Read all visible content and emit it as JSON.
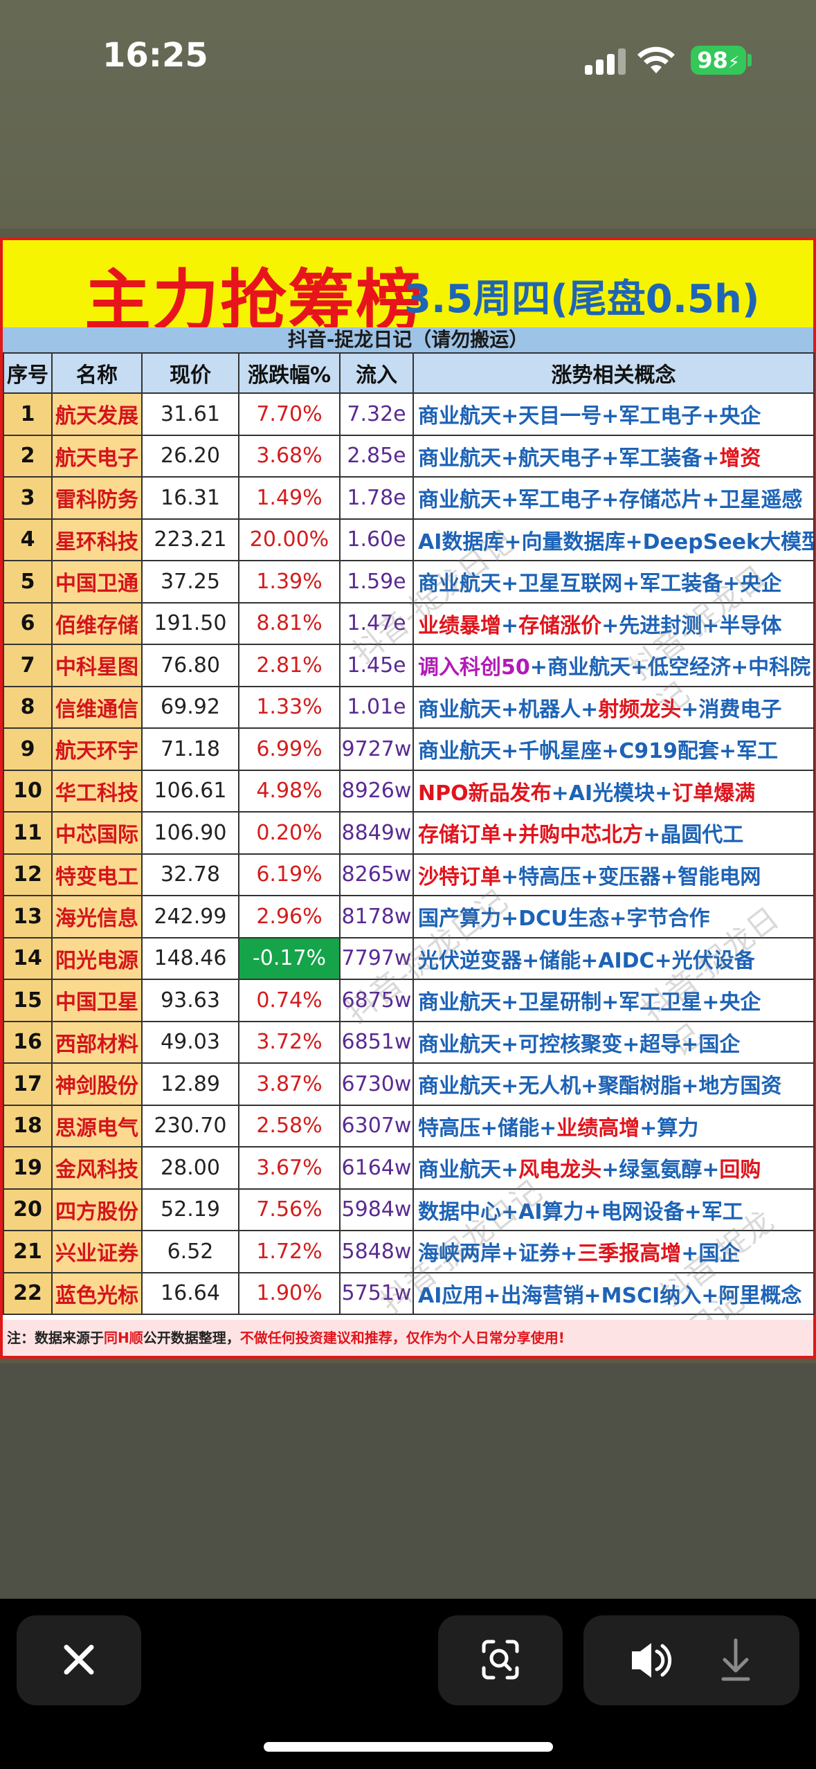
{
  "status_bar": {
    "time": "16:25",
    "battery": "98"
  },
  "poster": {
    "title": "主力抢筹榜",
    "subtitle": "3.5周四(尾盘0.5h)",
    "source_band": "抖音-捉龙日记（请勿搬运）",
    "watermark": "抖音-捉龙日记",
    "headers": [
      "序号",
      "名称",
      "现价",
      "涨跌幅%",
      "流入",
      "涨势相关概念"
    ],
    "rows": [
      {
        "idx": "1",
        "name": "航天发展",
        "price": "31.61",
        "chg": "7.70%",
        "flow": "7.32e",
        "concept": [
          [
            "商业航天+天目一号+军工电子+央企",
            ""
          ]
        ]
      },
      {
        "idx": "2",
        "name": "航天电子",
        "price": "26.20",
        "chg": "3.68%",
        "flow": "2.85e",
        "concept": [
          [
            "商业航天+航天电子+军工装备+",
            ""
          ],
          [
            "增资",
            "r"
          ]
        ]
      },
      {
        "idx": "3",
        "name": "雷科防务",
        "price": "16.31",
        "chg": "1.49%",
        "flow": "1.78e",
        "concept": [
          [
            "商业航天+军工电子+存储芯片+卫星遥感",
            ""
          ]
        ]
      },
      {
        "idx": "4",
        "name": "星环科技",
        "price": "223.21",
        "chg": "20.00%",
        "flow": "1.60e",
        "concept": [
          [
            "AI数据库+向量数据库+DeepSeek大模型",
            ""
          ]
        ]
      },
      {
        "idx": "5",
        "name": "中国卫通",
        "price": "37.25",
        "chg": "1.39%",
        "flow": "1.59e",
        "concept": [
          [
            "商业航天+卫星互联网+军工装备+央企",
            ""
          ]
        ]
      },
      {
        "idx": "6",
        "name": "佰维存储",
        "price": "191.50",
        "chg": "8.81%",
        "flow": "1.47e",
        "concept": [
          [
            "业绩暴增",
            "r"
          ],
          [
            "+",
            ""
          ],
          [
            "存储涨价",
            "r"
          ],
          [
            "+先进封测+半导体",
            ""
          ]
        ]
      },
      {
        "idx": "7",
        "name": "中科星图",
        "price": "76.80",
        "chg": "2.81%",
        "flow": "1.45e",
        "concept": [
          [
            "调入科创50",
            "p"
          ],
          [
            "+商业航天+低空经济+中科院",
            ""
          ]
        ]
      },
      {
        "idx": "8",
        "name": "信维通信",
        "price": "69.92",
        "chg": "1.33%",
        "flow": "1.01e",
        "concept": [
          [
            "商业航天+机器人+",
            ""
          ],
          [
            "射频龙头",
            "r"
          ],
          [
            "+消费电子",
            ""
          ]
        ]
      },
      {
        "idx": "9",
        "name": "航天环宇",
        "price": "71.18",
        "chg": "6.99%",
        "flow": "9727w",
        "concept": [
          [
            "商业航天+千帆星座+C919配套+军工",
            ""
          ]
        ]
      },
      {
        "idx": "10",
        "name": "华工科技",
        "price": "106.61",
        "chg": "4.98%",
        "flow": "8926w",
        "concept": [
          [
            "NPO新品发布",
            "r"
          ],
          [
            "+AI光模块+",
            ""
          ],
          [
            "订单爆满",
            "r"
          ]
        ]
      },
      {
        "idx": "11",
        "name": "中芯国际",
        "price": "106.90",
        "chg": "0.20%",
        "flow": "8849w",
        "concept": [
          [
            "存储订单+并购中芯北方",
            "r"
          ],
          [
            "+晶圆代工",
            ""
          ]
        ]
      },
      {
        "idx": "12",
        "name": "特变电工",
        "price": "32.78",
        "chg": "6.19%",
        "flow": "8265w",
        "concept": [
          [
            "沙特订单",
            "r"
          ],
          [
            "+特高压+变压器+智能电网",
            ""
          ]
        ]
      },
      {
        "idx": "13",
        "name": "海光信息",
        "price": "242.99",
        "chg": "2.96%",
        "flow": "8178w",
        "concept": [
          [
            "国产算力+DCU生态+字节合作",
            ""
          ]
        ]
      },
      {
        "idx": "14",
        "name": "阳光电源",
        "price": "148.46",
        "chg": "-0.17%",
        "flow": "7797w",
        "concept": [
          [
            "光伏逆变器+储能+AIDC+光伏设备",
            ""
          ]
        ],
        "neg": true
      },
      {
        "idx": "15",
        "name": "中国卫星",
        "price": "93.63",
        "chg": "0.74%",
        "flow": "6875w",
        "concept": [
          [
            "商业航天+卫星研制+军工卫星+央企",
            ""
          ]
        ]
      },
      {
        "idx": "16",
        "name": "西部材料",
        "price": "49.03",
        "chg": "3.72%",
        "flow": "6851w",
        "concept": [
          [
            "商业航天+可控核聚变+超导+国企",
            ""
          ]
        ]
      },
      {
        "idx": "17",
        "name": "神剑股份",
        "price": "12.89",
        "chg": "3.87%",
        "flow": "6730w",
        "concept": [
          [
            "商业航天+无人机+聚酯树脂+地方国资",
            ""
          ]
        ]
      },
      {
        "idx": "18",
        "name": "思源电气",
        "price": "230.70",
        "chg": "2.58%",
        "flow": "6307w",
        "concept": [
          [
            "特高压+储能+",
            ""
          ],
          [
            "业绩高增",
            "r"
          ],
          [
            "+算力",
            ""
          ]
        ]
      },
      {
        "idx": "19",
        "name": "金风科技",
        "price": "28.00",
        "chg": "3.67%",
        "flow": "6164w",
        "concept": [
          [
            "商业航天+",
            ""
          ],
          [
            "风电龙头",
            "r"
          ],
          [
            "+绿氢氨醇+",
            ""
          ],
          [
            "回购",
            "r"
          ]
        ]
      },
      {
        "idx": "20",
        "name": "四方股份",
        "price": "52.19",
        "chg": "7.56%",
        "flow": "5984w",
        "concept": [
          [
            "数据中心+AI算力+电网设备+军工",
            ""
          ]
        ]
      },
      {
        "idx": "21",
        "name": "兴业证券",
        "price": "6.52",
        "chg": "1.72%",
        "flow": "5848w",
        "concept": [
          [
            "海峡两岸+证券+",
            ""
          ],
          [
            "三季报高增",
            "r"
          ],
          [
            "+国企",
            ""
          ]
        ]
      },
      {
        "idx": "22",
        "name": "蓝色光标",
        "price": "16.64",
        "chg": "1.90%",
        "flow": "5751w",
        "concept": [
          [
            "AI应用+出海营销+MSCI纳入+阿里概念",
            ""
          ]
        ]
      }
    ],
    "footer": {
      "prefix": "注：数据来源于",
      "source": "同H顺",
      "middle": "公开数据整理，",
      "warning": "不做任何投资建议和推荐，仅作为个人日常分享使用!"
    }
  },
  "toolbar": {
    "close": "close",
    "scan": "visual-lookup",
    "sound": "sound-on",
    "download": "download"
  }
}
